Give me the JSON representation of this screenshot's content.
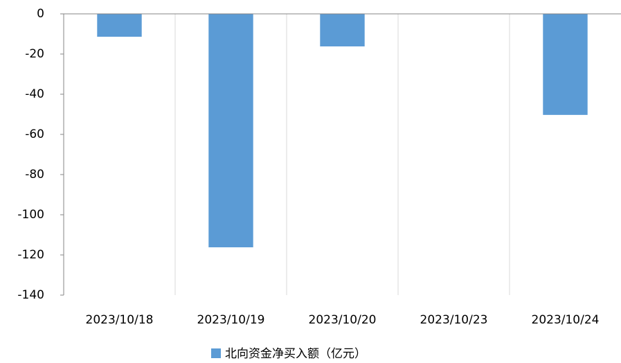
{
  "chart_data": {
    "type": "bar",
    "categories": [
      "2023/10/18",
      "2023/10/19",
      "2023/10/20",
      "2023/10/23",
      "2023/10/24"
    ],
    "series": [
      {
        "name": "北向资金净买入额（亿元）",
        "color": "#5b9bd5",
        "values": [
          -11.4,
          -116.2,
          -16.2,
          0,
          -50.3
        ]
      }
    ],
    "ylim": [
      -140,
      0
    ],
    "yticks": [
      0,
      -20,
      -40,
      -60,
      -80,
      -100,
      -120,
      -140
    ],
    "legend": "bottom"
  }
}
